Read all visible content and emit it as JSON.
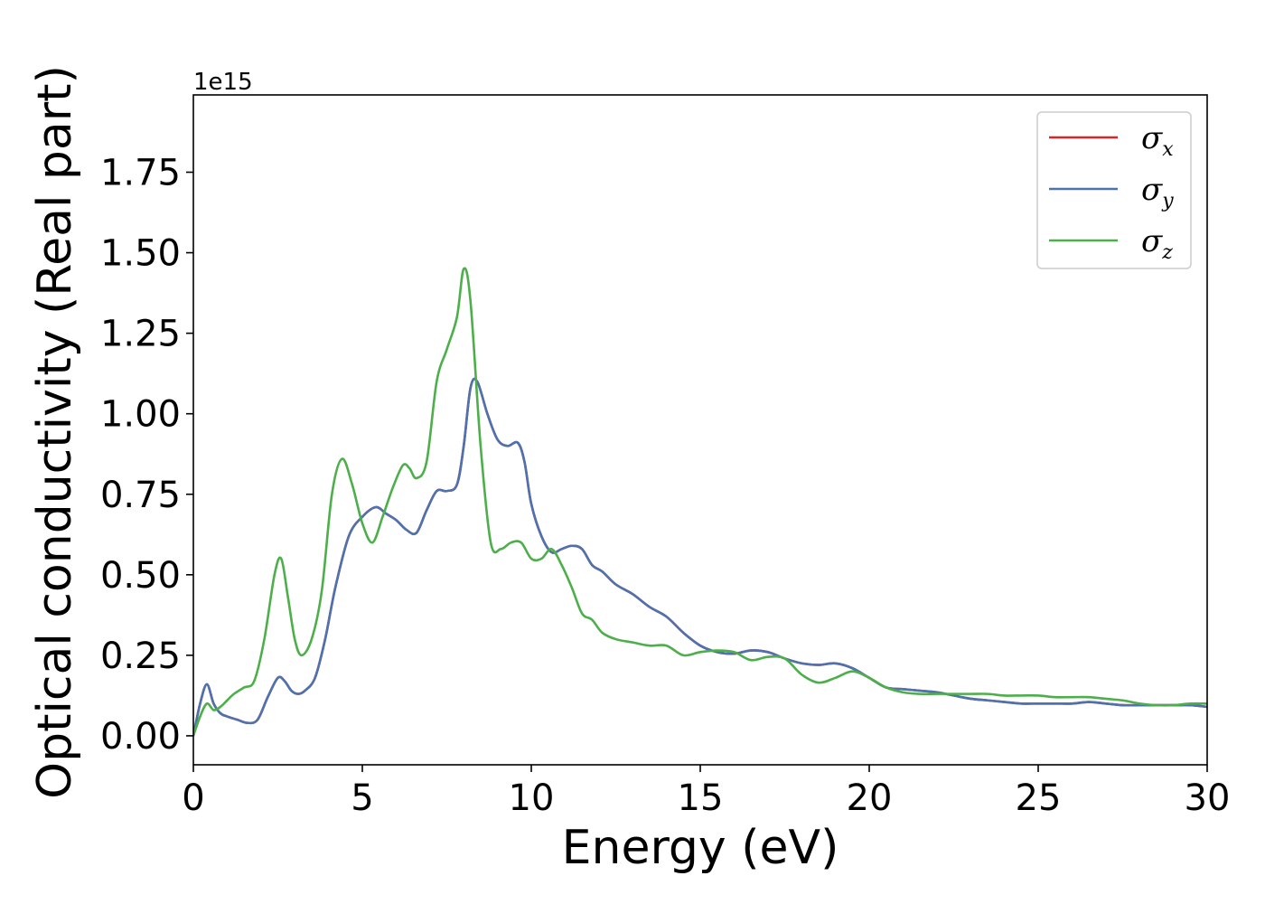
{
  "chart_data": {
    "type": "line",
    "title": "",
    "xlabel": "Energy (eV)",
    "ylabel": "Optical conductivity (Real part)",
    "y_offset_label": "1e15",
    "xlim": [
      0,
      30
    ],
    "ylim": [
      -0.09,
      1.99
    ],
    "x_ticks": [
      0,
      5,
      10,
      15,
      20,
      25,
      30
    ],
    "x_tick_labels": [
      "0",
      "5",
      "10",
      "15",
      "20",
      "25",
      "30"
    ],
    "y_ticks": [
      0.0,
      0.25,
      0.5,
      0.75,
      1.0,
      1.25,
      1.5,
      1.75
    ],
    "y_tick_labels": [
      "0.00",
      "0.25",
      "0.50",
      "0.75",
      "1.00",
      "1.25",
      "1.50",
      "1.75"
    ],
    "grid": false,
    "legend_position": "top-right",
    "series": [
      {
        "name": "σ",
        "sub": "x",
        "color": "#d62728",
        "x": [
          0,
          0.2,
          0.4,
          0.6,
          0.8,
          1.0,
          1.3,
          1.6,
          1.9,
          2.2,
          2.5,
          2.7,
          2.9,
          3.1,
          3.3,
          3.6,
          3.9,
          4.2,
          4.6,
          5.0,
          5.4,
          5.7,
          6.0,
          6.3,
          6.6,
          6.9,
          7.2,
          7.5,
          7.8,
          8.0,
          8.2,
          8.4,
          8.7,
          9.0,
          9.3,
          9.6,
          9.8,
          10.0,
          10.3,
          10.6,
          10.9,
          11.2,
          11.5,
          11.8,
          12.1,
          12.5,
          13.0,
          13.5,
          14.0,
          14.5,
          15.0,
          15.5,
          16.0,
          16.5,
          17.0,
          17.5,
          18.0,
          18.5,
          19.0,
          19.5,
          20.0,
          20.5,
          21.0,
          21.5,
          22.0,
          22.5,
          23.0,
          23.5,
          24.0,
          24.5,
          25.0,
          25.5,
          26.0,
          26.5,
          27.0,
          27.5,
          28.0,
          28.5,
          29.0,
          29.5,
          30.0
        ],
        "y": [
          0.0,
          0.1,
          0.16,
          0.1,
          0.07,
          0.06,
          0.05,
          0.04,
          0.05,
          0.12,
          0.18,
          0.17,
          0.14,
          0.13,
          0.14,
          0.18,
          0.3,
          0.46,
          0.62,
          0.68,
          0.71,
          0.69,
          0.67,
          0.64,
          0.63,
          0.7,
          0.76,
          0.76,
          0.78,
          0.9,
          1.08,
          1.1,
          1.0,
          0.92,
          0.9,
          0.91,
          0.85,
          0.72,
          0.62,
          0.57,
          0.58,
          0.59,
          0.58,
          0.53,
          0.51,
          0.47,
          0.44,
          0.4,
          0.37,
          0.32,
          0.28,
          0.26,
          0.255,
          0.265,
          0.26,
          0.24,
          0.225,
          0.22,
          0.225,
          0.21,
          0.18,
          0.15,
          0.145,
          0.14,
          0.135,
          0.125,
          0.115,
          0.11,
          0.105,
          0.1,
          0.1,
          0.1,
          0.1,
          0.105,
          0.1,
          0.095,
          0.095,
          0.095,
          0.095,
          0.095,
          0.09
        ]
      },
      {
        "name": "σ",
        "sub": "y",
        "color": "#4c72b0",
        "x": [
          0,
          0.2,
          0.4,
          0.6,
          0.8,
          1.0,
          1.3,
          1.6,
          1.9,
          2.2,
          2.5,
          2.7,
          2.9,
          3.1,
          3.3,
          3.6,
          3.9,
          4.2,
          4.6,
          5.0,
          5.4,
          5.7,
          6.0,
          6.3,
          6.6,
          6.9,
          7.2,
          7.5,
          7.8,
          8.0,
          8.2,
          8.4,
          8.7,
          9.0,
          9.3,
          9.6,
          9.8,
          10.0,
          10.3,
          10.6,
          10.9,
          11.2,
          11.5,
          11.8,
          12.1,
          12.5,
          13.0,
          13.5,
          14.0,
          14.5,
          15.0,
          15.5,
          16.0,
          16.5,
          17.0,
          17.5,
          18.0,
          18.5,
          19.0,
          19.5,
          20.0,
          20.5,
          21.0,
          21.5,
          22.0,
          22.5,
          23.0,
          23.5,
          24.0,
          24.5,
          25.0,
          25.5,
          26.0,
          26.5,
          27.0,
          27.5,
          28.0,
          28.5,
          29.0,
          29.5,
          30.0
        ],
        "y": [
          0.0,
          0.1,
          0.16,
          0.1,
          0.07,
          0.06,
          0.05,
          0.04,
          0.05,
          0.12,
          0.18,
          0.17,
          0.14,
          0.13,
          0.14,
          0.18,
          0.3,
          0.46,
          0.62,
          0.68,
          0.71,
          0.69,
          0.67,
          0.64,
          0.63,
          0.7,
          0.76,
          0.76,
          0.78,
          0.9,
          1.08,
          1.1,
          1.0,
          0.92,
          0.9,
          0.91,
          0.85,
          0.72,
          0.62,
          0.57,
          0.58,
          0.59,
          0.58,
          0.53,
          0.51,
          0.47,
          0.44,
          0.4,
          0.37,
          0.32,
          0.28,
          0.26,
          0.255,
          0.265,
          0.26,
          0.24,
          0.225,
          0.22,
          0.225,
          0.21,
          0.18,
          0.15,
          0.145,
          0.14,
          0.135,
          0.125,
          0.115,
          0.11,
          0.105,
          0.1,
          0.1,
          0.1,
          0.1,
          0.105,
          0.1,
          0.095,
          0.095,
          0.095,
          0.095,
          0.095,
          0.09
        ]
      },
      {
        "name": "σ",
        "sub": "z",
        "color": "#4daf4a",
        "x": [
          0,
          0.2,
          0.4,
          0.6,
          0.8,
          1.0,
          1.2,
          1.5,
          1.8,
          2.1,
          2.4,
          2.6,
          2.8,
          3.0,
          3.2,
          3.5,
          3.8,
          4.1,
          4.4,
          4.7,
          5.0,
          5.3,
          5.6,
          5.9,
          6.2,
          6.4,
          6.6,
          6.9,
          7.2,
          7.5,
          7.8,
          8.0,
          8.2,
          8.5,
          8.8,
          9.1,
          9.4,
          9.7,
          10.0,
          10.3,
          10.6,
          10.9,
          11.2,
          11.5,
          11.8,
          12.1,
          12.5,
          13.0,
          13.5,
          14.0,
          14.5,
          15.0,
          15.5,
          16.0,
          16.5,
          17.0,
          17.5,
          18.0,
          18.5,
          19.0,
          19.5,
          20.0,
          20.5,
          21.0,
          21.5,
          22.0,
          22.5,
          23.0,
          23.5,
          24.0,
          24.5,
          25.0,
          25.5,
          26.0,
          26.5,
          27.0,
          27.5,
          28.0,
          28.5,
          29.0,
          29.5,
          30.0
        ],
        "y": [
          0.0,
          0.06,
          0.1,
          0.08,
          0.09,
          0.11,
          0.13,
          0.15,
          0.17,
          0.3,
          0.5,
          0.55,
          0.43,
          0.3,
          0.25,
          0.3,
          0.45,
          0.75,
          0.86,
          0.78,
          0.66,
          0.6,
          0.68,
          0.77,
          0.84,
          0.83,
          0.8,
          0.85,
          1.1,
          1.2,
          1.3,
          1.45,
          1.35,
          0.9,
          0.6,
          0.58,
          0.6,
          0.6,
          0.55,
          0.55,
          0.58,
          0.53,
          0.46,
          0.38,
          0.36,
          0.32,
          0.3,
          0.29,
          0.28,
          0.28,
          0.25,
          0.26,
          0.265,
          0.26,
          0.235,
          0.245,
          0.24,
          0.19,
          0.165,
          0.18,
          0.2,
          0.18,
          0.15,
          0.135,
          0.13,
          0.13,
          0.13,
          0.13,
          0.13,
          0.125,
          0.125,
          0.125,
          0.12,
          0.12,
          0.12,
          0.115,
          0.11,
          0.1,
          0.095,
          0.095,
          0.1,
          0.1
        ]
      }
    ]
  }
}
